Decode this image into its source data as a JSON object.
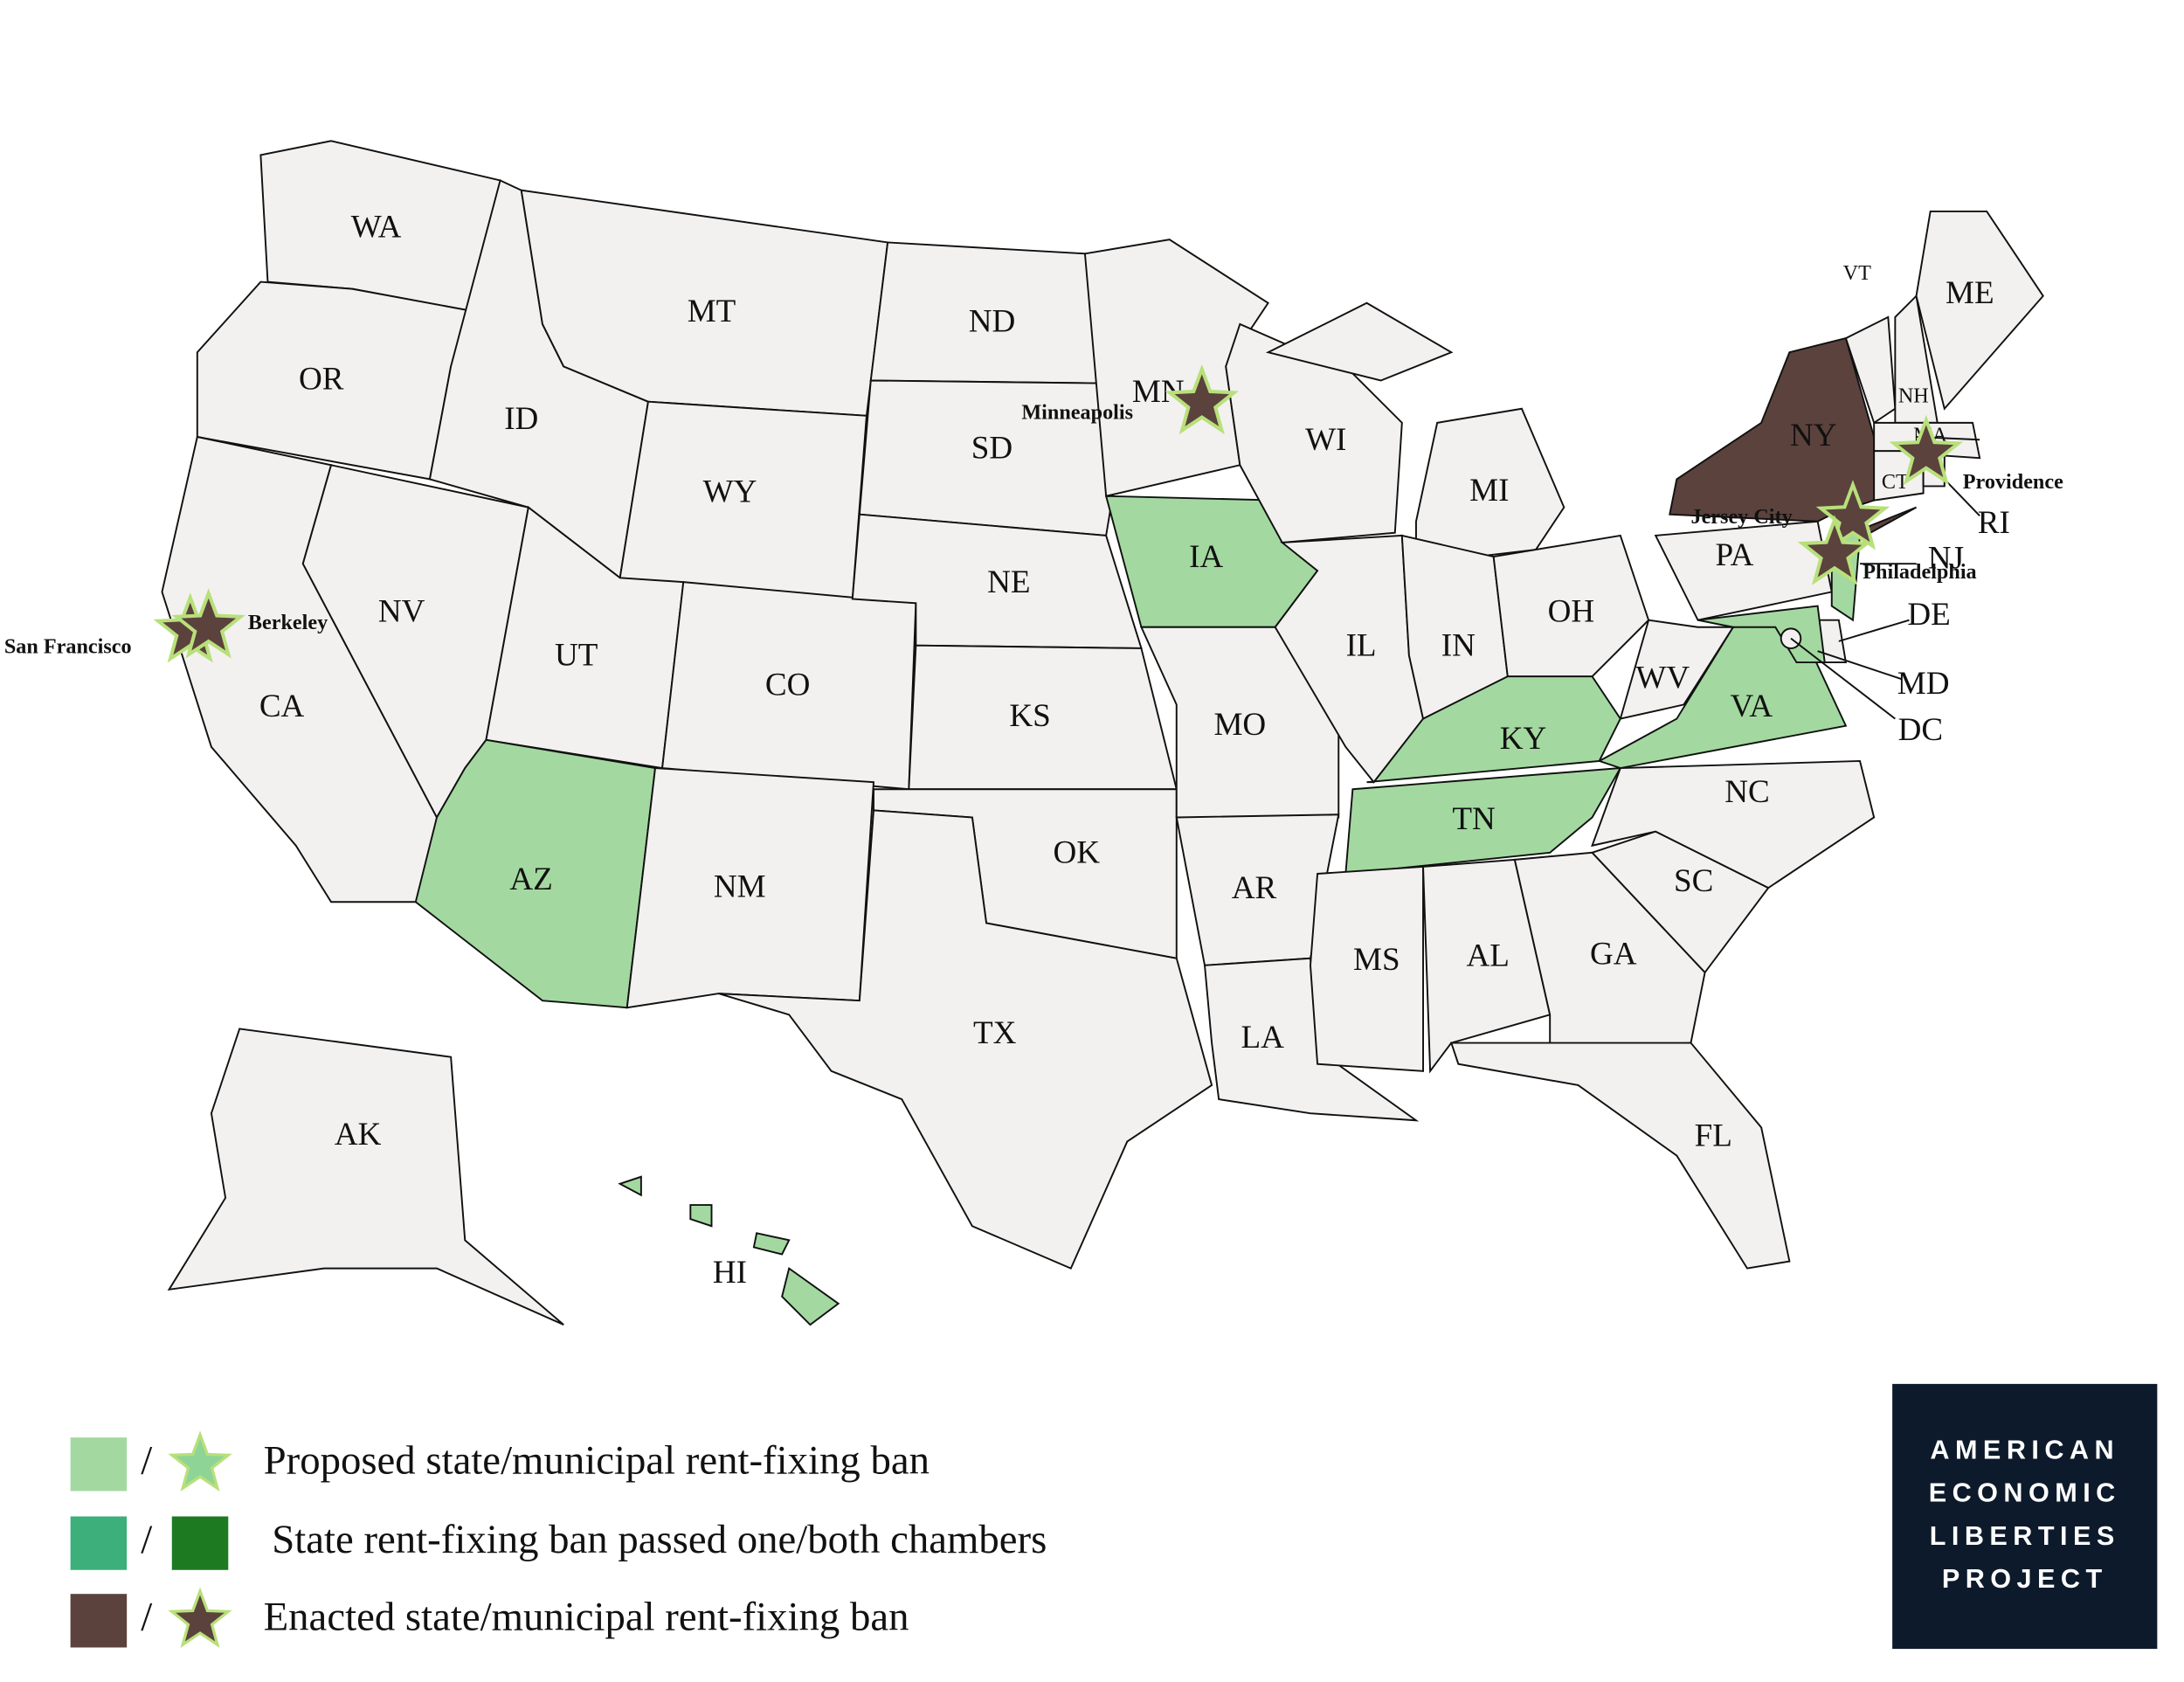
{
  "map": {
    "states": [
      {
        "label": "WA",
        "color": "#f3f1f0"
      },
      {
        "label": "OR",
        "color": "#f3f1f0"
      },
      {
        "label": "CA",
        "color": "#f3f1f0"
      },
      {
        "label": "NV",
        "color": "#f3f1f0"
      },
      {
        "label": "ID",
        "color": "#f3f1f0"
      },
      {
        "label": "MT",
        "color": "#f3f1f0"
      },
      {
        "label": "WY",
        "color": "#f3f1f0"
      },
      {
        "label": "UT",
        "color": "#f3f1f0"
      },
      {
        "label": "CO",
        "color": "#f3f1f0"
      },
      {
        "label": "AZ",
        "color": "#a3d9a0"
      },
      {
        "label": "NM",
        "color": "#f3f1f0"
      },
      {
        "label": "ND",
        "color": "#f3f1f0"
      },
      {
        "label": "SD",
        "color": "#f3f1f0"
      },
      {
        "label": "NE",
        "color": "#f3f1f0"
      },
      {
        "label": "KS",
        "color": "#f3f1f0"
      },
      {
        "label": "OK",
        "color": "#f3f1f0"
      },
      {
        "label": "TX",
        "color": "#f3f1f0"
      },
      {
        "label": "MN",
        "color": "#f3f1f0"
      },
      {
        "label": "IA",
        "color": "#a3d9a0"
      },
      {
        "label": "MO",
        "color": "#f3f1f0"
      },
      {
        "label": "AR",
        "color": "#f3f1f0"
      },
      {
        "label": "LA",
        "color": "#f3f1f0"
      },
      {
        "label": "WI",
        "color": "#f3f1f0"
      },
      {
        "label": "IL",
        "color": "#f3f1f0"
      },
      {
        "label": "MI",
        "color": "#f3f1f0"
      },
      {
        "label": "IN",
        "color": "#f3f1f0"
      },
      {
        "label": "OH",
        "color": "#f3f1f0"
      },
      {
        "label": "KY",
        "color": "#a3d9a0"
      },
      {
        "label": "TN",
        "color": "#a3d9a0"
      },
      {
        "label": "MS",
        "color": "#f3f1f0"
      },
      {
        "label": "AL",
        "color": "#f3f1f0"
      },
      {
        "label": "GA",
        "color": "#f3f1f0"
      },
      {
        "label": "FL",
        "color": "#f3f1f0"
      },
      {
        "label": "SC",
        "color": "#f3f1f0"
      },
      {
        "label": "NC",
        "color": "#f3f1f0"
      },
      {
        "label": "VA",
        "color": "#a3d9a0"
      },
      {
        "label": "WV",
        "color": "#f3f1f0"
      },
      {
        "label": "PA",
        "color": "#f3f1f0"
      },
      {
        "label": "NY",
        "color": "#5b423d"
      },
      {
        "label": "NJ",
        "color": "#a3d9a0"
      },
      {
        "label": "DE",
        "color": "#f3f1f0"
      },
      {
        "label": "MD",
        "color": "#a3d9a0"
      },
      {
        "label": "VT",
        "color": "#f3f1f0"
      },
      {
        "label": "NH",
        "color": "#f3f1f0"
      },
      {
        "label": "ME",
        "color": "#f3f1f0"
      },
      {
        "label": "MA",
        "color": "#f3f1f0"
      },
      {
        "label": "CT",
        "color": "#f3f1f0"
      },
      {
        "label": "RI",
        "color": "#f3f1f0"
      },
      {
        "label": "AK",
        "color": "#f3f1f0"
      },
      {
        "label": "HI",
        "color": "#a3d9a0"
      },
      {
        "label": "DC",
        "color": "#f3f1f0"
      }
    ],
    "cities": [
      {
        "label": "San Francisco",
        "color": "#5b423d"
      },
      {
        "label": "Berkeley",
        "color": "#5b423d"
      },
      {
        "label": "Minneapolis",
        "color": "#5b423d"
      },
      {
        "label": "Providence",
        "color": "#5b423d"
      },
      {
        "label": "Jersey City",
        "color": "#5b423d"
      },
      {
        "label": "Philadelphia",
        "color": "#5b423d"
      }
    ]
  },
  "legend": [
    {
      "swatch_color": "#a3d9a0",
      "separator": "/",
      "marker_shape": "star",
      "marker_color": "#8fd497",
      "text": "Proposed state/municipal rent-fixing ban"
    },
    {
      "swatch_color": "#3daf7a",
      "separator": "/",
      "marker_shape": "square",
      "marker_color": "#1e7a21",
      "text": "State rent-fixing ban passed one/both chambers"
    },
    {
      "swatch_color": "#5b423d",
      "separator": "/",
      "marker_shape": "star",
      "marker_color": "#5b423d",
      "text": "Enacted state/municipal rent-fixing ban"
    }
  ],
  "logo": {
    "lines": [
      "AMERICAN",
      "ECONOMIC",
      "LIBERTIES",
      "PROJECT"
    ]
  }
}
